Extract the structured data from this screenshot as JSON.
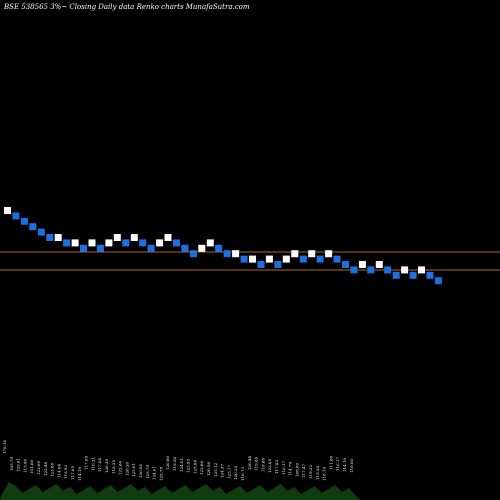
{
  "chart_data": {
    "type": "renko",
    "title": "BSE 538565 3%~  Closing Daily data  Renko  charts MunafaSutra.com",
    "colors": {
      "up_brick": "#ffffff",
      "down_brick": "#1e6fe0",
      "reference_line": "#b5651d",
      "volume": "#0f3d0f",
      "background": "#000000"
    },
    "bricks": [
      {
        "t": 0,
        "dir": "up"
      },
      {
        "t": 1,
        "dir": "down"
      },
      {
        "t": 2,
        "dir": "down"
      },
      {
        "t": 3,
        "dir": "down"
      },
      {
        "t": 4,
        "dir": "down"
      },
      {
        "t": 5,
        "dir": "down"
      },
      {
        "t": 5,
        "dir": "up"
      },
      {
        "t": 6,
        "dir": "down"
      },
      {
        "t": 6,
        "dir": "up"
      },
      {
        "t": 7,
        "dir": "down"
      },
      {
        "t": 6,
        "dir": "up"
      },
      {
        "t": 7,
        "dir": "down"
      },
      {
        "t": 6,
        "dir": "up"
      },
      {
        "t": 5,
        "dir": "up"
      },
      {
        "t": 6,
        "dir": "down"
      },
      {
        "t": 5,
        "dir": "up"
      },
      {
        "t": 6,
        "dir": "down"
      },
      {
        "t": 7,
        "dir": "down"
      },
      {
        "t": 6,
        "dir": "up"
      },
      {
        "t": 5,
        "dir": "up"
      },
      {
        "t": 6,
        "dir": "down"
      },
      {
        "t": 7,
        "dir": "down"
      },
      {
        "t": 8,
        "dir": "down"
      },
      {
        "t": 7,
        "dir": "up"
      },
      {
        "t": 6,
        "dir": "up"
      },
      {
        "t": 7,
        "dir": "down"
      },
      {
        "t": 8,
        "dir": "down"
      },
      {
        "t": 8,
        "dir": "up"
      },
      {
        "t": 9,
        "dir": "down"
      },
      {
        "t": 9,
        "dir": "up"
      },
      {
        "t": 10,
        "dir": "down"
      },
      {
        "t": 9,
        "dir": "up"
      },
      {
        "t": 10,
        "dir": "down"
      },
      {
        "t": 9,
        "dir": "up"
      },
      {
        "t": 8,
        "dir": "up"
      },
      {
        "t": 9,
        "dir": "down"
      },
      {
        "t": 8,
        "dir": "up"
      },
      {
        "t": 9,
        "dir": "down"
      },
      {
        "t": 8,
        "dir": "up"
      },
      {
        "t": 9,
        "dir": "down"
      },
      {
        "t": 10,
        "dir": "down"
      },
      {
        "t": 11,
        "dir": "down"
      },
      {
        "t": 10,
        "dir": "up"
      },
      {
        "t": 11,
        "dir": "down"
      },
      {
        "t": 10,
        "dir": "up"
      },
      {
        "t": 11,
        "dir": "down"
      },
      {
        "t": 12,
        "dir": "down"
      },
      {
        "t": 11,
        "dir": "up"
      },
      {
        "t": 12,
        "dir": "down"
      },
      {
        "t": 11,
        "dir": "up"
      },
      {
        "t": 12,
        "dir": "down"
      },
      {
        "t": 13,
        "dir": "down"
      }
    ],
    "reference_lines": [
      252,
      270
    ],
    "volume_labels": [
      "178.16",
      "105.79",
      "129.61",
      "113.90",
      "101.66",
      "122.09",
      "122.48",
      "123.08",
      "114.84",
      "118.92",
      "117.85",
      "114.19",
      "117.68",
      "110.31",
      "117.84",
      "126.39",
      "118.25",
      "122.66",
      "126.20",
      "125.01",
      "130.06",
      "125.79",
      "124.01",
      "129.78",
      "120.00",
      "119.56",
      "124.01",
      "123.95",
      "125.84",
      "122.66",
      "120.56",
      "125.12",
      "124.37",
      "123.17",
      "120.25",
      "116.73",
      "120.44",
      "119.86",
      "118.88",
      "122.05",
      "117.83",
      "116.17",
      "114.79",
      "108.00",
      "117.47",
      "119.22",
      "115.58",
      "118.19",
      "111.88",
      "116.17",
      "114.10",
      "116.00"
    ]
  }
}
